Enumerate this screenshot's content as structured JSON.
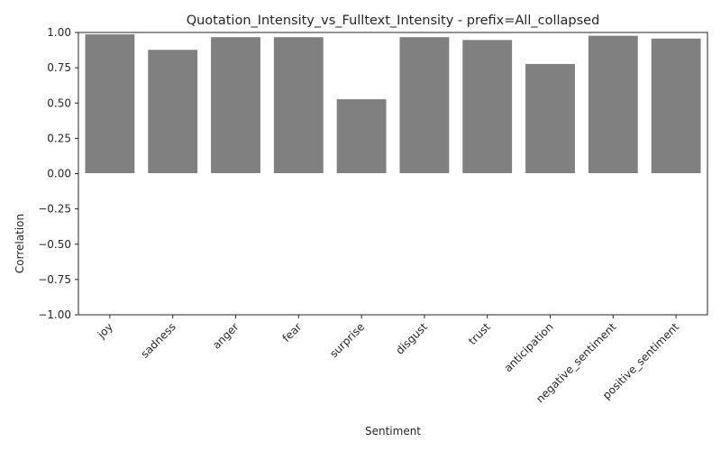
{
  "chart_data": {
    "type": "bar",
    "title": "Quotation_Intensity_vs_Fulltext_Intensity - prefix=All_collapsed",
    "xlabel": "Sentiment",
    "ylabel": "Correlation",
    "ylim": [
      -1.0,
      1.0
    ],
    "yticks": [
      "−1.00",
      "−0.75",
      "−0.50",
      "−0.25",
      "0.00",
      "0.25",
      "0.50",
      "0.75",
      "1.00"
    ],
    "ytick_values": [
      -1.0,
      -0.75,
      -0.5,
      -0.25,
      0.0,
      0.25,
      0.5,
      0.75,
      1.0
    ],
    "categories": [
      "joy",
      "sadness",
      "anger",
      "fear",
      "surprise",
      "disgust",
      "trust",
      "anticipation",
      "negative_sentiment",
      "positive_sentiment"
    ],
    "values": [
      0.99,
      0.88,
      0.97,
      0.97,
      0.53,
      0.97,
      0.95,
      0.78,
      0.98,
      0.96
    ],
    "grid": false,
    "legend": "none",
    "bar_color": "#808080",
    "axis_color": "#262626"
  }
}
